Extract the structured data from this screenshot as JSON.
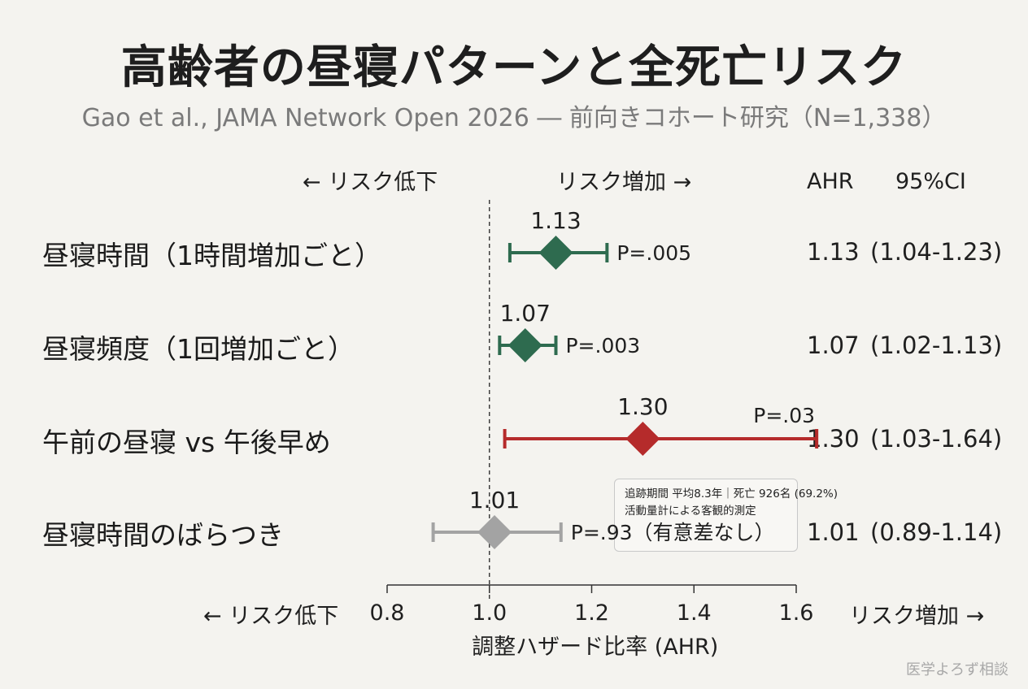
{
  "title": "高齢者の昼寝パターンと全死亡リスク",
  "subtitle": "Gao et al., JAMA Network Open 2026 ― 前向きコホート研究（N=1,338）",
  "header": {
    "risk_lower": "← リスク低下",
    "risk_higher": "リスク増加 →",
    "ahr_col": "AHR",
    "ci_col": "95%CI"
  },
  "note": {
    "line1": "追跡期間 平均8.3年｜死亡 926名 (69.2%)",
    "line2": "活動量計による客観的測定"
  },
  "axis_footer": {
    "left_dir": "← リスク低下",
    "right_dir": "リスク増加 →"
  },
  "watermark": "医学よろず相談",
  "colors": {
    "green": "#2e6b4f",
    "red": "#b52b2b",
    "gray": "#a3a3a3"
  },
  "chart_data": {
    "type": "forest",
    "xlabel": "調整ハザード比率 (AHR)",
    "xlim": [
      0.8,
      1.6
    ],
    "x_ticks": [
      "0.8",
      "1.0",
      "1.2",
      "1.4",
      "1.6"
    ],
    "reference_line": 1.0,
    "rows": [
      {
        "label": "昼寝時間（1時間増加ごと）",
        "ahr": 1.13,
        "ahr_text": "1.13",
        "ci_low": 1.04,
        "ci_high": 1.23,
        "ci_text": "(1.04-1.23)",
        "p": "P=.005",
        "color": "#2e6b4f"
      },
      {
        "label": "昼寝頻度（1回増加ごと）",
        "ahr": 1.07,
        "ahr_text": "1.07",
        "ci_low": 1.02,
        "ci_high": 1.13,
        "ci_text": "(1.02-1.13)",
        "p": "P=.003",
        "color": "#2e6b4f"
      },
      {
        "label": "午前の昼寝 vs 午後早め",
        "ahr": 1.3,
        "ahr_text": "1.30",
        "ci_low": 1.03,
        "ci_high": 1.64,
        "ci_text": "(1.03-1.64)",
        "p": "P=.03",
        "color": "#b52b2b"
      },
      {
        "label": "昼寝時間のばらつき",
        "ahr": 1.01,
        "ahr_text": "1.01",
        "ci_low": 0.89,
        "ci_high": 1.14,
        "ci_text": "(0.89-1.14)",
        "p": "P=.93（有意差なし）",
        "color": "#a3a3a3"
      }
    ]
  }
}
